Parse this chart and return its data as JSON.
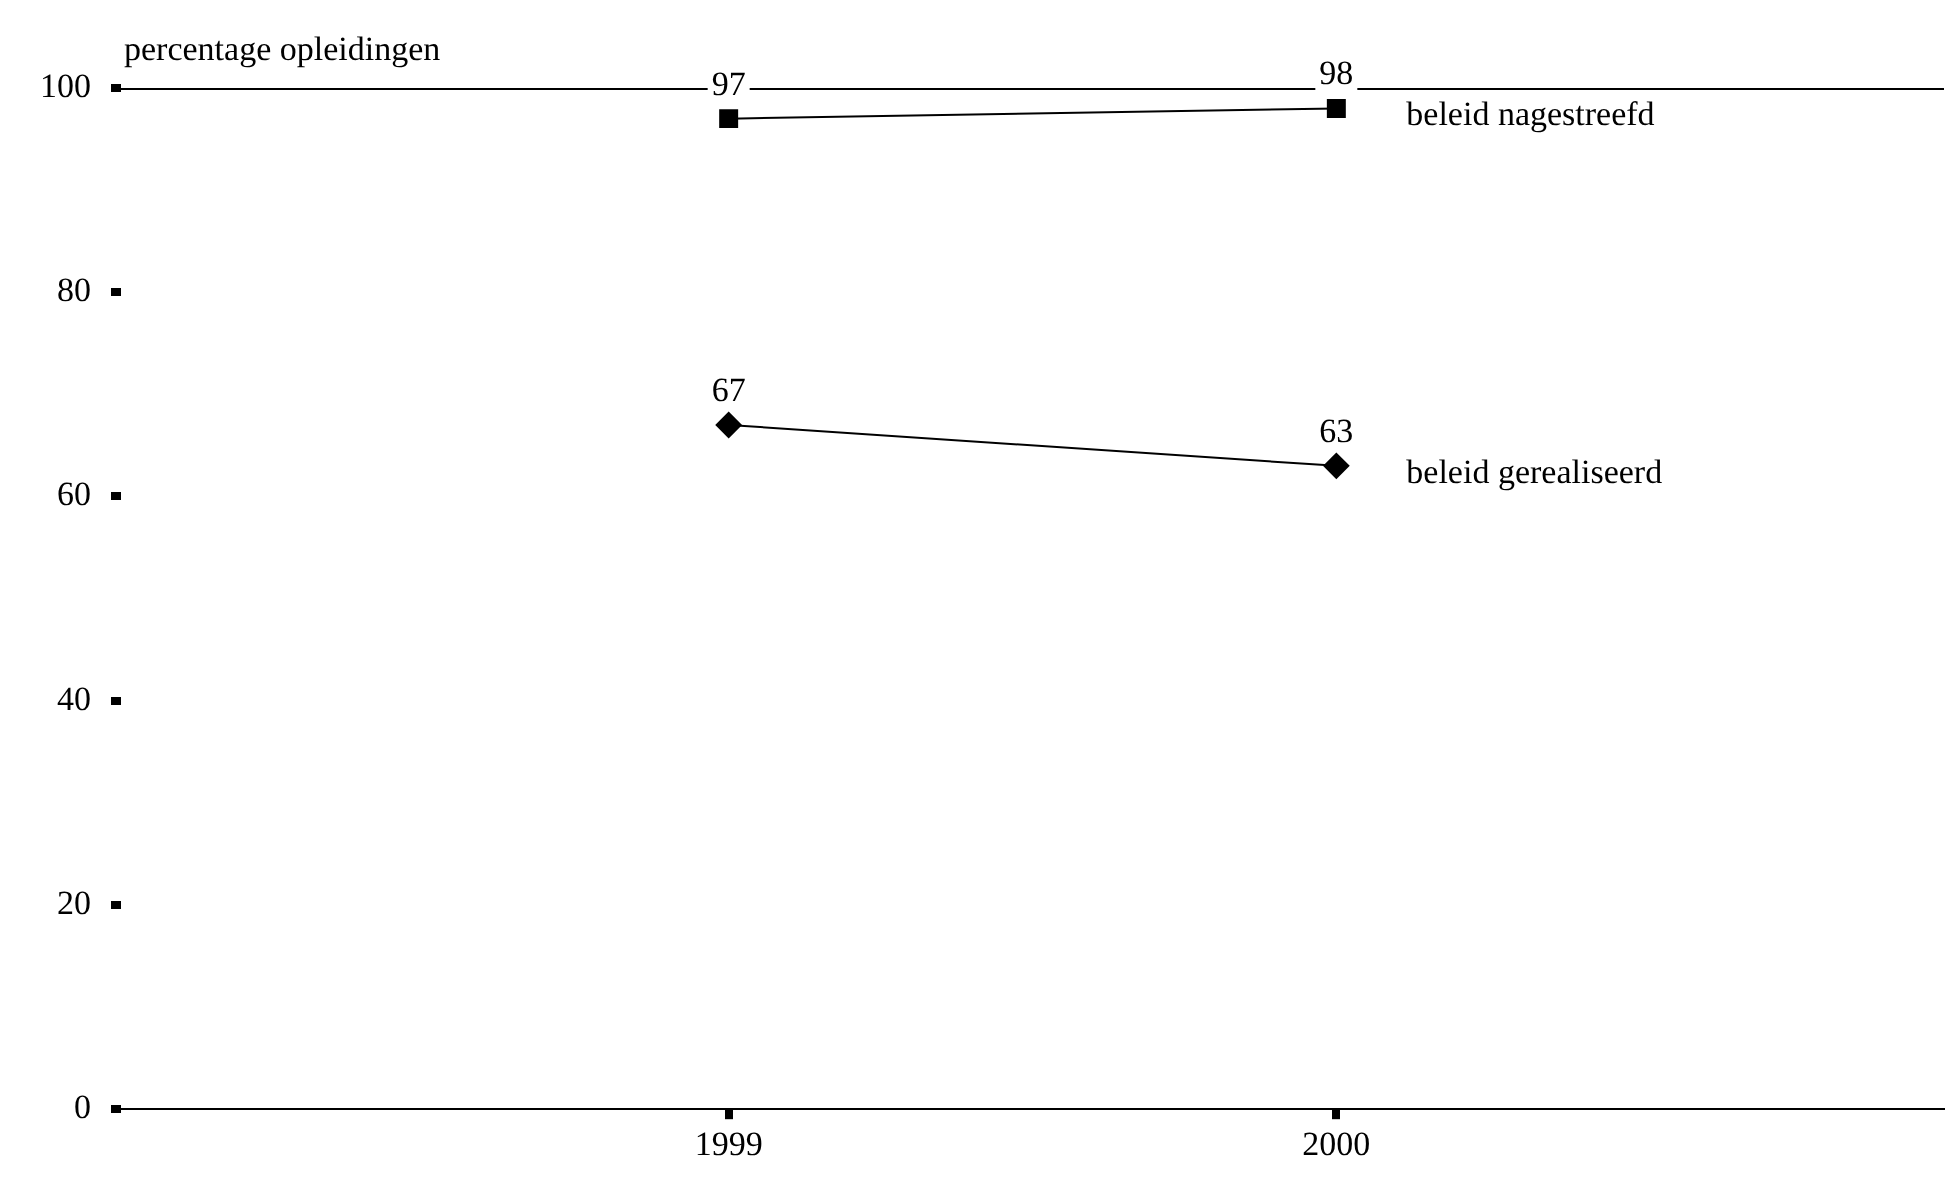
{
  "chart_data": {
    "type": "line",
    "ylabel": "percentage opleidingen",
    "x": [
      1999,
      2000
    ],
    "xlim": [
      1998,
      2001
    ],
    "xticks": [
      1999,
      2000
    ],
    "ylim": [
      0,
      100
    ],
    "yticks": [
      0,
      20,
      40,
      60,
      80,
      100
    ],
    "grid": false,
    "legend": false,
    "data_labels": true,
    "series": [
      {
        "name": "beleid nagestreefd",
        "color": "#000000",
        "marker": "square",
        "values": [
          97,
          98
        ]
      },
      {
        "name": "beleid gerealiseerd",
        "color": "#000000",
        "marker": "diamond",
        "values": [
          67,
          63
        ]
      }
    ]
  }
}
